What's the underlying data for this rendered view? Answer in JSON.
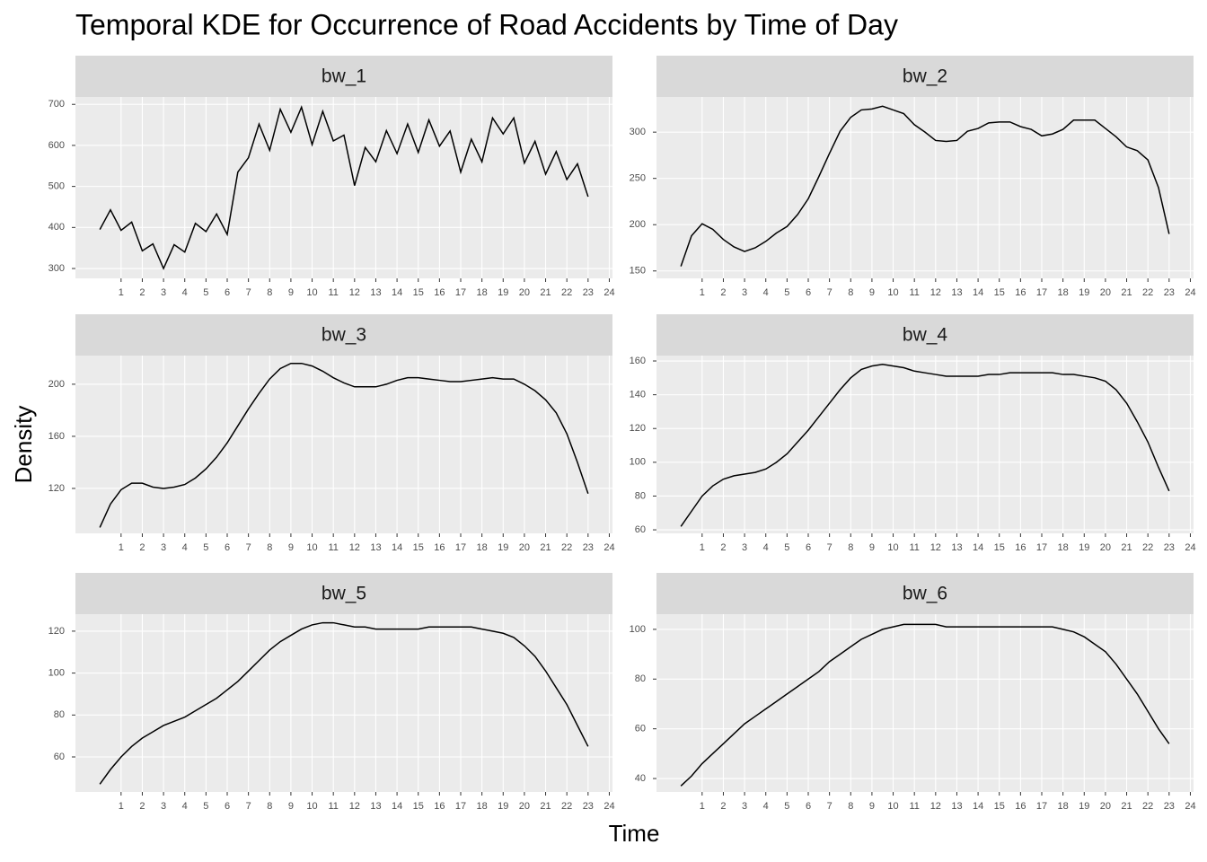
{
  "title": "Temporal KDE for Occurrence of Road Accidents by Time of Day",
  "x_label": "Time",
  "y_label": "Density",
  "chart_data": [
    {
      "type": "line",
      "title": "bw_1",
      "color": "#000000",
      "grid": true,
      "x": [
        0,
        0.5,
        1,
        1.5,
        2,
        2.5,
        3,
        3.5,
        4,
        4.5,
        5,
        5.5,
        6,
        6.5,
        7,
        7.5,
        8,
        8.5,
        9,
        9.5,
        10,
        10.5,
        11,
        11.5,
        12,
        12.5,
        13,
        13.5,
        14,
        14.5,
        15,
        15.5,
        16,
        16.5,
        17,
        17.5,
        18,
        18.5,
        19,
        19.5,
        20,
        20.5,
        21,
        21.5,
        22,
        22.5,
        23
      ],
      "values": [
        395,
        443,
        393,
        413,
        343,
        360,
        300,
        358,
        340,
        410,
        390,
        433,
        383,
        535,
        570,
        652,
        588,
        688,
        632,
        693,
        602,
        683,
        611,
        625,
        502,
        595,
        560,
        636,
        580,
        652,
        583,
        662,
        598,
        635,
        535,
        615,
        560,
        667,
        628,
        667,
        557,
        610,
        530,
        585,
        517,
        555,
        475
      ],
      "xlim": [
        -1.15,
        24.15
      ],
      "xticks": [
        1,
        2,
        3,
        4,
        5,
        6,
        7,
        8,
        9,
        10,
        11,
        12,
        13,
        14,
        15,
        16,
        17,
        18,
        19,
        20,
        21,
        22,
        23,
        24
      ],
      "ylim": [
        276,
        718
      ],
      "yticks": [
        300,
        400,
        500,
        600,
        700
      ]
    },
    {
      "type": "line",
      "title": "bw_2",
      "color": "#000000",
      "grid": true,
      "x": [
        0,
        0.5,
        1,
        1.5,
        2,
        2.5,
        3,
        3.5,
        4,
        4.5,
        5,
        5.5,
        6,
        6.5,
        7,
        7.5,
        8,
        8.5,
        9,
        9.5,
        10,
        10.5,
        11,
        11.5,
        12,
        12.5,
        13,
        13.5,
        14,
        14.5,
        15,
        15.5,
        16,
        16.5,
        17,
        17.5,
        18,
        18.5,
        19,
        19.5,
        20,
        20.5,
        21,
        21.5,
        22,
        22.5,
        23
      ],
      "values": [
        155,
        188,
        201,
        195,
        184,
        176,
        171,
        175,
        182,
        191,
        198,
        211,
        228,
        252,
        277,
        301,
        316,
        324,
        325,
        328,
        324,
        320,
        308,
        300,
        291,
        290,
        291,
        301,
        304,
        310,
        311,
        311,
        306,
        303,
        296,
        298,
        303,
        313,
        313,
        313,
        304,
        295,
        284,
        280,
        270,
        240,
        190
      ],
      "xlim": [
        -1.15,
        24.15
      ],
      "xticks": [
        1,
        2,
        3,
        4,
        5,
        6,
        7,
        8,
        9,
        10,
        11,
        12,
        13,
        14,
        15,
        16,
        17,
        18,
        19,
        20,
        21,
        22,
        23,
        24
      ],
      "ylim": [
        142,
        338
      ],
      "yticks": [
        150,
        200,
        250,
        300
      ]
    },
    {
      "type": "line",
      "title": "bw_3",
      "color": "#000000",
      "grid": true,
      "x": [
        0,
        0.5,
        1,
        1.5,
        2,
        2.5,
        3,
        3.5,
        4,
        4.5,
        5,
        5.5,
        6,
        6.5,
        7,
        7.5,
        8,
        8.5,
        9,
        9.5,
        10,
        10.5,
        11,
        11.5,
        12,
        12.5,
        13,
        13.5,
        14,
        14.5,
        15,
        15.5,
        16,
        16.5,
        17,
        17.5,
        18,
        18.5,
        19,
        19.5,
        20,
        20.5,
        21,
        21.5,
        22,
        22.5,
        23
      ],
      "values": [
        90,
        108,
        119,
        124,
        124,
        121,
        120,
        121,
        123,
        128,
        135,
        144,
        155,
        168,
        181,
        193,
        204,
        212,
        216,
        216,
        214,
        210,
        205,
        201,
        198,
        198,
        198,
        200,
        203,
        205,
        205,
        204,
        203,
        202,
        202,
        203,
        204,
        205,
        204,
        204,
        200,
        195,
        188,
        178,
        162,
        140,
        116
      ],
      "xlim": [
        -1.15,
        24.15
      ],
      "xticks": [
        1,
        2,
        3,
        4,
        5,
        6,
        7,
        8,
        9,
        10,
        11,
        12,
        13,
        14,
        15,
        16,
        17,
        18,
        19,
        20,
        21,
        22,
        23,
        24
      ],
      "ylim": [
        85.5,
        222
      ],
      "yticks": [
        120,
        160,
        200
      ]
    },
    {
      "type": "line",
      "title": "bw_4",
      "color": "#000000",
      "grid": true,
      "x": [
        0,
        0.5,
        1,
        1.5,
        2,
        2.5,
        3,
        3.5,
        4,
        4.5,
        5,
        5.5,
        6,
        6.5,
        7,
        7.5,
        8,
        8.5,
        9,
        9.5,
        10,
        10.5,
        11,
        11.5,
        12,
        12.5,
        13,
        13.5,
        14,
        14.5,
        15,
        15.5,
        16,
        16.5,
        17,
        17.5,
        18,
        18.5,
        19,
        19.5,
        20,
        20.5,
        21,
        21.5,
        22,
        22.5,
        23
      ],
      "values": [
        62,
        71,
        80,
        86,
        90,
        92,
        93,
        94,
        96,
        100,
        105,
        112,
        119,
        127,
        135,
        143,
        150,
        155,
        157,
        158,
        157,
        156,
        154,
        153,
        152,
        151,
        151,
        151,
        151,
        152,
        152,
        153,
        153,
        153,
        153,
        153,
        152,
        152,
        151,
        150,
        148,
        143,
        135,
        124,
        112,
        97,
        83
      ],
      "xlim": [
        -1.15,
        24.15
      ],
      "xticks": [
        1,
        2,
        3,
        4,
        5,
        6,
        7,
        8,
        9,
        10,
        11,
        12,
        13,
        14,
        15,
        16,
        17,
        18,
        19,
        20,
        21,
        22,
        23,
        24
      ],
      "ylim": [
        57.9,
        163.2
      ],
      "yticks": [
        60,
        80,
        100,
        120,
        140,
        160
      ]
    },
    {
      "type": "line",
      "title": "bw_5",
      "color": "#000000",
      "grid": true,
      "x": [
        0,
        0.5,
        1,
        1.5,
        2,
        2.5,
        3,
        3.5,
        4,
        4.5,
        5,
        5.5,
        6,
        6.5,
        7,
        7.5,
        8,
        8.5,
        9,
        9.5,
        10,
        10.5,
        11,
        11.5,
        12,
        12.5,
        13,
        13.5,
        14,
        14.5,
        15,
        15.5,
        16,
        16.5,
        17,
        17.5,
        18,
        18.5,
        19,
        19.5,
        20,
        20.5,
        21,
        21.5,
        22,
        22.5,
        23
      ],
      "values": [
        47,
        54,
        60,
        65,
        69,
        72,
        75,
        77,
        79,
        82,
        85,
        88,
        92,
        96,
        101,
        106,
        111,
        115,
        118,
        121,
        123,
        124,
        124,
        123,
        122,
        122,
        121,
        121,
        121,
        121,
        121,
        122,
        122,
        122,
        122,
        122,
        121,
        120,
        119,
        117,
        113,
        108,
        101,
        93,
        85,
        75,
        65
      ],
      "xlim": [
        -1.15,
        24.15
      ],
      "xticks": [
        1,
        2,
        3,
        4,
        5,
        6,
        7,
        8,
        9,
        10,
        11,
        12,
        13,
        14,
        15,
        16,
        17,
        18,
        19,
        20,
        21,
        22,
        23,
        24
      ],
      "ylim": [
        43.3,
        128.1
      ],
      "yticks": [
        60,
        80,
        100,
        120
      ]
    },
    {
      "type": "line",
      "title": "bw_6",
      "color": "#000000",
      "grid": true,
      "x": [
        0,
        0.5,
        1,
        1.5,
        2,
        2.5,
        3,
        3.5,
        4,
        4.5,
        5,
        5.5,
        6,
        6.5,
        7,
        7.5,
        8,
        8.5,
        9,
        9.5,
        10,
        10.5,
        11,
        11.5,
        12,
        12.5,
        13,
        13.5,
        14,
        14.5,
        15,
        15.5,
        16,
        16.5,
        17,
        17.5,
        18,
        18.5,
        19,
        19.5,
        20,
        20.5,
        21,
        21.5,
        22,
        22.5,
        23
      ],
      "values": [
        37,
        41,
        46,
        50,
        54,
        58,
        62,
        65,
        68,
        71,
        74,
        77,
        80,
        83,
        87,
        90,
        93,
        96,
        98,
        100,
        101,
        102,
        102,
        102,
        102,
        101,
        101,
        101,
        101,
        101,
        101,
        101,
        101,
        101,
        101,
        101,
        100,
        99,
        97,
        94,
        91,
        86,
        80,
        74,
        67,
        60,
        54
      ],
      "xlim": [
        -1.15,
        24.15
      ],
      "xticks": [
        1,
        2,
        3,
        4,
        5,
        6,
        7,
        8,
        9,
        10,
        11,
        12,
        13,
        14,
        15,
        16,
        17,
        18,
        19,
        20,
        21,
        22,
        23,
        24
      ],
      "ylim": [
        34.6,
        106.1
      ],
      "yticks": [
        40,
        60,
        80,
        100
      ]
    }
  ]
}
